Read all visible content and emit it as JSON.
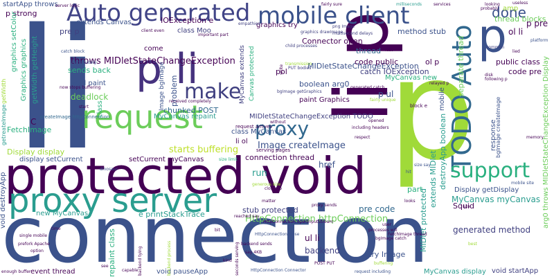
{
  "word_cloud": {
    "background": "#ffffff",
    "words": [
      {
        "text": "connection",
        "color": "#3b528b",
        "weight": 1.0
      },
      {
        "text": "li",
        "color": "#3b528b",
        "weight": 0.95
      },
      {
        "text": "p",
        "color": "#a0da39",
        "weight": 0.9
      },
      {
        "text": "protected void",
        "color": "#440154",
        "weight": 0.85
      },
      {
        "text": "p li",
        "color": "#46327e",
        "weight": 0.6
      },
      {
        "text": "li p",
        "color": "#440154",
        "weight": 0.6
      },
      {
        "text": "request",
        "color": "#6ccd5a",
        "weight": 0.55
      },
      {
        "text": "proxy server",
        "color": "#2a9d8f",
        "weight": 0.55
      },
      {
        "text": "Auto generated",
        "color": "#414487",
        "weight": 0.45
      },
      {
        "text": "mobile client",
        "color": "#3b528b",
        "weight": 0.45
      },
      {
        "text": "TODO Auto",
        "color": "#31688e",
        "weight": 0.45
      },
      {
        "text": "p",
        "color": "#3b528b",
        "weight": 0.45
      },
      {
        "text": "make",
        "color": "#404080",
        "weight": 0.35
      },
      {
        "text": "proxy",
        "color": "#31688e",
        "weight": 0.35
      },
      {
        "text": "support",
        "color": "#2ab07f",
        "weight": 0.35
      },
      {
        "text": "done",
        "color": "#3b528b",
        "weight": 0.25
      },
      {
        "text": "starts buffering",
        "color": "#bddf26",
        "weight": 0.2
      },
      {
        "text": "MIDletStateChangeException",
        "color": "#3b528b",
        "weight": 0.2
      },
      {
        "text": "HttpConnection httpConnection",
        "color": "#6ccd5a",
        "weight": 0.2
      },
      {
        "text": "void startApp",
        "color": "#404080",
        "weight": 0.15
      },
      {
        "text": "MyCanvas display",
        "color": "#2a9d8f",
        "weight": 0.15
      },
      {
        "text": "pre code",
        "color": "#31688e",
        "weight": 0.15
      },
      {
        "text": "generated method",
        "color": "#404080",
        "weight": 0.15
      },
      {
        "text": "Display getDisplay",
        "color": "#3b528b",
        "weight": 0.15
      },
      {
        "text": "throws MIDletStateChangeException",
        "color": "#440154",
        "weight": 0.15
      },
      {
        "text": "arg0 throws MIDletStateChangeException Display",
        "color": "#6ccd5a",
        "weight": 0.12
      },
      {
        "text": "repaint class",
        "color": "#2ab07f",
        "weight": 0.12
      },
      {
        "text": "Image createImage",
        "color": "#3b528b",
        "weight": 0.15
      },
      {
        "text": "event thread",
        "color": "#440154",
        "weight": 0.1
      },
      {
        "text": "Squid",
        "color": "#440154",
        "weight": 0.1
      },
      {
        "text": "backend",
        "color": "#404080",
        "weight": 0.12
      },
      {
        "text": "void pauseApp",
        "color": "#3b528b",
        "weight": 0.12
      },
      {
        "text": "public class",
        "color": "#440154",
        "weight": 0.12
      },
      {
        "text": "separate thread",
        "color": "#6ccd5a",
        "weight": 0.12
      },
      {
        "text": "thread blocks",
        "color": "#6ccd5a",
        "weight": 0.12
      },
      {
        "text": "sends back",
        "color": "#2ab07f",
        "weight": 0.12
      },
      {
        "text": "deadlock",
        "color": "#6ccd5a",
        "weight": 0.12
      },
      {
        "text": "chunked POST",
        "color": "#31688e",
        "weight": 0.12
      },
      {
        "text": "e printStackTrace",
        "color": "#2a9d8f",
        "weight": 0.1
      },
      {
        "text": "Display display",
        "color": "#a0da39",
        "weight": 0.12
      },
      {
        "text": "void destroyApp",
        "color": "#3b528b",
        "weight": 0.12
      },
      {
        "text": "new MyCanvas",
        "color": "#2a9d8f",
        "weight": 0.1
      },
      {
        "text": "stub protected",
        "color": "#404080",
        "weight": 0.1
      },
      {
        "text": "connection thread",
        "color": "#440154",
        "weight": 0.1
      },
      {
        "text": "ul li",
        "color": "#440154",
        "weight": 0.1
      },
      {
        "text": "try Image",
        "color": "#3b528b",
        "weight": 0.1
      },
      {
        "text": "Connector open",
        "color": "#440154",
        "weight": 0.1
      },
      {
        "text": "catch IOException",
        "color": "#404080",
        "weight": 0.1
      },
      {
        "text": "code public",
        "color": "#440154",
        "weight": 0.1
      },
      {
        "text": "method stub",
        "color": "#3b528b",
        "weight": 0.1
      },
      {
        "text": "extends Canvas",
        "color": "#3b528b",
        "weight": 0.08
      },
      {
        "text": "IOException e",
        "color": "#440154",
        "weight": 0.08
      },
      {
        "text": "class Moo",
        "color": "#404080",
        "weight": 0.08
      },
      {
        "text": "graphics try",
        "color": "#440154",
        "weight": 0.08
      },
      {
        "text": "thread",
        "color": "#31688e",
        "weight": 0.08
      },
      {
        "text": "boolean arg0",
        "color": "#3b528b",
        "weight": 0.08
      },
      {
        "text": "paint Graphics",
        "color": "#440154",
        "weight": 0.08
      },
      {
        "text": "MyCanvas new",
        "color": "#2ab07f",
        "weight": 0.08
      },
      {
        "text": "class MyCanvas",
        "color": "#3b528b",
        "weight": 0.08
      },
      {
        "text": "li ol",
        "color": "#440154",
        "weight": 0.08
      },
      {
        "text": "p ul",
        "color": "#3b528b",
        "weight": 0.08
      },
      {
        "text": "run",
        "color": "#2a9d8f",
        "weight": 0.1
      },
      {
        "text": "href",
        "color": "#3b528b",
        "weight": 0.1
      },
      {
        "text": "part",
        "color": "#2ab07f",
        "weight": 0.08
      },
      {
        "text": "ol li",
        "color": "#440154",
        "weight": 0.1
      },
      {
        "text": "p pre",
        "color": "#440154",
        "weight": 0.1
      },
      {
        "text": "code pre",
        "color": "#440154",
        "weight": 0.1
      },
      {
        "text": "pre p",
        "color": "#404080",
        "weight": 0.08
      },
      {
        "text": "p strong",
        "color": "#440154",
        "weight": 0.08
      },
      {
        "text": "amp",
        "color": "#a0da39",
        "weight": 0.06
      },
      {
        "text": "FetchImage",
        "color": "#2ab07f",
        "weight": 0.08
      },
      {
        "text": "display setCurrent",
        "color": "#3b528b",
        "weight": 0.08
      },
      {
        "text": "setCurrent myCanvas",
        "color": "#440154",
        "weight": 0.08
      },
      {
        "text": "startApp throws",
        "color": "#3b528b",
        "weight": 0.07
      },
      {
        "text": "mobile",
        "color": "#3b528b",
        "weight": 0.07
      },
      {
        "text": "problem",
        "color": "#3b528b",
        "weight": 0.07
      },
      {
        "text": "pol",
        "color": "#440154",
        "weight": 0.07
      },
      {
        "text": "ol p",
        "color": "#440154",
        "weight": 0.07
      },
      {
        "text": "void paint",
        "color": "#3b528b",
        "weight": 0.07
      },
      {
        "text": "response",
        "color": "#3b528b",
        "weight": 0.06
      },
      {
        "text": "come",
        "color": "#440154",
        "weight": 0.06
      },
      {
        "text": "MyCanvas myCanvas",
        "color": "#2a9d8f",
        "weight": 0.1
      },
      {
        "text": "getWidth getHeight",
        "color": "#2a9d8f",
        "weight": 0.06
      },
      {
        "text": "Graphics graphics",
        "color": "#2ab07f",
        "weight": 0.06
      },
      {
        "text": "graphics setColor",
        "color": "#2ab07f",
        "weight": 0.06
      },
      {
        "text": "Image bgImage",
        "color": "#3b528b",
        "weight": 0.06
      },
      {
        "text": "MyCanvas repaint",
        "color": "#2a9d8f",
        "weight": 0.06
      },
      {
        "text": "bgImage createImage",
        "color": "#3b528b",
        "weight": 0.06
      },
      {
        "text": "MIDlet protected",
        "color": "#2a9d8f",
        "weight": 0.07
      },
      {
        "text": "extends MIDlet",
        "color": "#2a9d8f",
        "weight": 0.07
      },
      {
        "text": "destroyApp boolean",
        "color": "#2a9d8f",
        "weight": 0.07
      },
      {
        "text": "MyCanvas extends",
        "color": "#404080",
        "weight": 0.06
      },
      {
        "text": "Canvas protected",
        "color": "#2ab07f",
        "weight": 0.06
      },
      {
        "text": "MIDletStateChangeException TODO",
        "color": "#404080",
        "weight": 0.06
      },
      {
        "text": "createImage httpConnection",
        "color": "#31688e",
        "weight": 0.04
      },
      {
        "text": "request arrives",
        "color": "#440154",
        "weight": 0.04
      },
      {
        "text": "serving pages",
        "color": "#440154",
        "weight": 0.04
      },
      {
        "text": "class",
        "color": "#2ab07f",
        "weight": 0.06
      },
      {
        "text": "C",
        "color": "#440154",
        "weight": 0.07
      },
      {
        "text": "client even",
        "color": "#440154",
        "weight": 0.04
      },
      {
        "text": "empathies",
        "color": "#404080",
        "weight": 0.03
      },
      {
        "text": "png Image",
        "color": "#404080",
        "weight": 0.03
      },
      {
        "text": "graphics drawImage",
        "color": "#404080",
        "weight": 0.03
      },
      {
        "text": "multisecond delays",
        "color": "#404080",
        "weight": 0.03
      },
      {
        "text": "catch block",
        "color": "#3b528b",
        "weight": 0.03
      },
      {
        "text": "immediately",
        "color": "#3b528b",
        "weight": 0.03
      },
      {
        "text": "getWidth",
        "color": "#a0da39",
        "weight": 0.04
      },
      {
        "text": "getreateImage",
        "color": "#2a9d8f",
        "weight": 0.04
      },
      {
        "text": "dinosaur",
        "color": "#3b528b",
        "weight": 0.03
      },
      {
        "text": "size limit",
        "color": "#2ab07f",
        "weight": 0.03
      },
      {
        "text": "mobile site",
        "color": "#3b528b",
        "weight": 0.03
      },
      {
        "text": "size say",
        "color": "#3b528b",
        "weight": 0.03
      },
      {
        "text": "hit",
        "color": "#3b528b",
        "weight": 0.03
      },
      {
        "text": "processes will",
        "color": "#440154",
        "weight": 0.03
      },
      {
        "text": "HttpConnection close",
        "color": "#3b528b",
        "weight": 0.03
      },
      {
        "text": "HttpConnection Connector",
        "color": "#3b528b",
        "weight": 0.03
      },
      {
        "text": "request including",
        "color": "#3b528b",
        "weight": 0.03
      },
      {
        "text": "including headers",
        "color": "#440154",
        "weight": 0.03
      },
      {
        "text": "prefork Apache",
        "color": "#440154",
        "weight": 0.03
      },
      {
        "text": "single mobile",
        "color": "#440154",
        "weight": 0.03
      },
      {
        "text": "option",
        "color": "#440154",
        "weight": 0.03
      },
      {
        "text": "enough buffer",
        "color": "#440154",
        "weight": 0.03
      },
      {
        "text": "server logic",
        "color": "#440154",
        "weight": 0.03
      },
      {
        "text": "fairly sure",
        "color": "#440154",
        "weight": 0.03
      },
      {
        "text": "milliseconds",
        "color": "#2a9d8f",
        "weight": 0.03
      },
      {
        "text": "services",
        "color": "#440154",
        "weight": 0.03
      },
      {
        "text": "probably",
        "color": "#440154",
        "weight": 0.03
      },
      {
        "text": "useless",
        "color": "#440154",
        "weight": 0.03
      },
      {
        "text": "looking",
        "color": "#440154",
        "weight": 0.03
      },
      {
        "text": "fast",
        "color": "#440154",
        "weight": 0.03
      },
      {
        "text": "lied",
        "color": "#440154",
        "weight": 0.03
      },
      {
        "text": "platform",
        "color": "#3b528b",
        "weight": 0.03
      },
      {
        "text": "common",
        "color": "#404080",
        "weight": 0.03
      },
      {
        "text": "disk",
        "color": "#440154",
        "weight": 0.03
      },
      {
        "text": "following p",
        "color": "#440154",
        "weight": 0.03
      },
      {
        "text": "relayed p",
        "color": "#440154",
        "weight": 0.03
      },
      {
        "text": "memory",
        "color": "#440154",
        "weight": 0.03
      },
      {
        "text": "block e",
        "color": "#440154",
        "weight": 0.03
      },
      {
        "text": "fairly unique",
        "color": "#a0da39",
        "weight": 0.03
      },
      {
        "text": "generated catch",
        "color": "#440154",
        "weight": 0.03
      },
      {
        "text": "bgImage getGraphics",
        "color": "#404080",
        "weight": 0.03
      },
      {
        "text": "child processes",
        "color": "#404080",
        "weight": 0.03
      },
      {
        "text": "PUT bodies",
        "color": "#404080",
        "weight": 0.03
      },
      {
        "text": "transmission",
        "color": "#a0da39",
        "weight": 0.03
      },
      {
        "text": "now stops buffering",
        "color": "#440154",
        "weight": 0.03
      },
      {
        "text": "received completely",
        "color": "#440154",
        "weight": 0.03
      },
      {
        "text": "start",
        "color": "#440154",
        "weight": 0.03
      },
      {
        "text": "write",
        "color": "#440154",
        "weight": 0.03
      },
      {
        "text": "without",
        "color": "#440154",
        "weight": 0.03
      },
      {
        "text": "opened",
        "color": "#440154",
        "weight": 0.03
      },
      {
        "text": "respect",
        "color": "#440154",
        "weight": 0.03
      },
      {
        "text": "closed p",
        "color": "#440154",
        "weight": 0.03
      },
      {
        "text": "matter",
        "color": "#440154",
        "weight": 0.03
      },
      {
        "text": "generous size",
        "color": "#a0da39",
        "weight": 0.03
      },
      {
        "text": "reached say",
        "color": "#440154",
        "weight": 0.03
      },
      {
        "text": "backend sends",
        "color": "#440154",
        "weight": 0.03
      },
      {
        "text": "proxy sends",
        "color": "#440154",
        "weight": 0.03
      },
      {
        "text": "HttpConnection openInputStream",
        "color": "#440154",
        "weight": 0.03
      },
      {
        "text": "say 4KB",
        "color": "#440154",
        "weight": 0.03
      },
      {
        "text": "seconds serving",
        "color": "#440154",
        "weight": 0.03
      },
      {
        "text": "backend tying",
        "color": "#440154",
        "weight": 0.03
      },
      {
        "text": "backend process",
        "color": "#a0da39",
        "weight": 0.03
      },
      {
        "text": "important part",
        "color": "#440154",
        "weight": 0.03
      },
      {
        "text": "FetchImage thread",
        "color": "#440154",
        "weight": 0.03
      },
      {
        "text": "bgImage catch",
        "color": "#440154",
        "weight": 0.03
      },
      {
        "text": "buffering",
        "color": "#a0da39",
        "weight": 0.03
      },
      {
        "text": "POST PUT",
        "color": "#440154",
        "weight": 0.03
      },
      {
        "text": "capable",
        "color": "#440154",
        "weight": 0.03
      },
      {
        "text": "kind",
        "color": "#440154",
        "weight": 0.03
      },
      {
        "text": "looks",
        "color": "#440154",
        "weight": 0.03
      },
      {
        "text": "best",
        "color": "#a0da39",
        "weight": 0.03
      },
      {
        "text": "site",
        "color": "#440154",
        "weight": 0.03
      },
      {
        "text": "user",
        "color": "#440154",
        "weight": 0.03
      },
      {
        "text": "time",
        "color": "#440154",
        "weight": 0.03
      },
      {
        "text": "see",
        "color": "#440154",
        "weight": 0.03
      },
      {
        "text": "bit",
        "color": "#440154",
        "weight": 0.03
      }
    ]
  }
}
